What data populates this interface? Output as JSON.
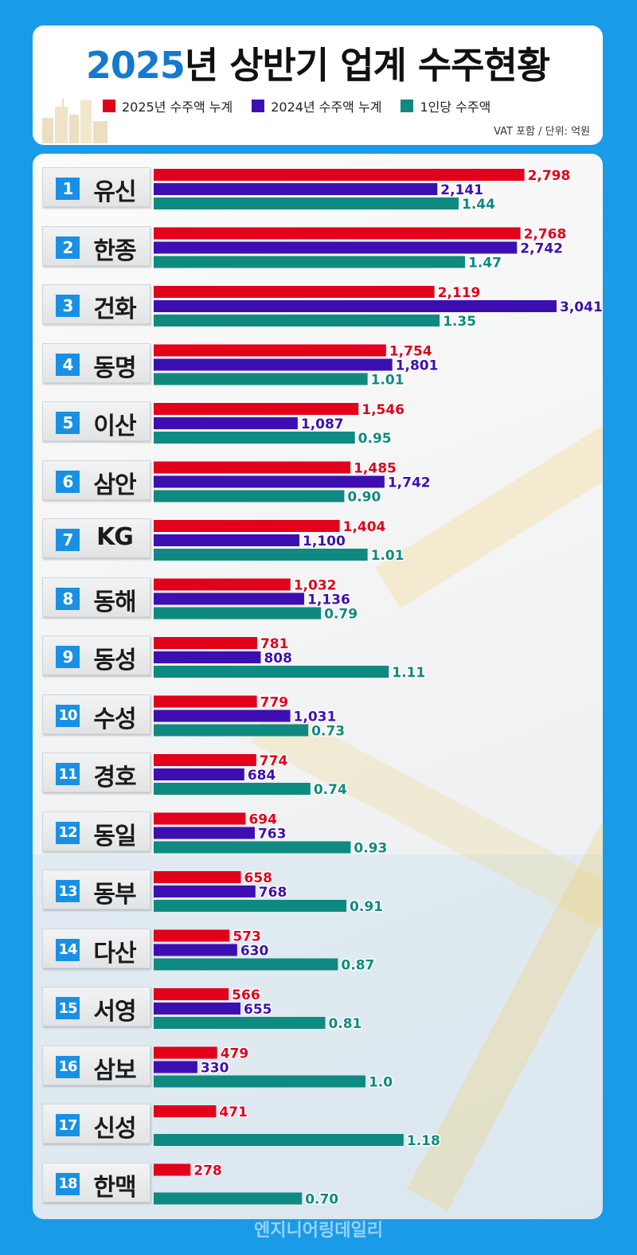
{
  "header": {
    "title_year": "2025",
    "title_rest": "년 상반기 업계 수주현황",
    "unit_note": "VAT 포함 / 단위: 억원"
  },
  "colors": {
    "series_2025": "#e2001a",
    "series_2024": "#3d0fb2",
    "per_person": "#0e8a80",
    "rank_badge": "#1890e4",
    "background": "#1a9be8"
  },
  "footer": {
    "watermark": "엔지니어링데일리"
  },
  "chart_data": {
    "type": "bar",
    "orientation": "horizontal",
    "title": "2025년 상반기 업계 수주현황",
    "unit": "VAT 포함 / 단위: 억원",
    "legend_position": "top",
    "categories": [
      "유신",
      "한종",
      "건화",
      "동명",
      "이산",
      "삼안",
      "KG",
      "동해",
      "동성",
      "수성",
      "경호",
      "동일",
      "동부",
      "다산",
      "서영",
      "삼보",
      "신성",
      "한맥"
    ],
    "ranks": [
      "1",
      "2",
      "3",
      "4",
      "5",
      "6",
      "7",
      "8",
      "9",
      "10",
      "11",
      "12",
      "13",
      "14",
      "15",
      "16",
      "17",
      "18"
    ],
    "series": [
      {
        "name": "2025년 수주액 누계",
        "color": "#e2001a",
        "values": [
          2798,
          2768,
          2119,
          1754,
          1546,
          1485,
          1404,
          1032,
          781,
          779,
          774,
          694,
          658,
          573,
          566,
          479,
          471,
          278
        ],
        "labels": [
          "2,798",
          "2,768",
          "2,119",
          "1,754",
          "1,546",
          "1,485",
          "1,404",
          "1,032",
          "781",
          "779",
          "774",
          "694",
          "658",
          "573",
          "566",
          "479",
          "471",
          "278"
        ]
      },
      {
        "name": "2024년 수주액 누계",
        "color": "#3d0fb2",
        "values": [
          2141,
          2742,
          3041,
          1801,
          1087,
          1742,
          1100,
          1136,
          808,
          1031,
          684,
          763,
          768,
          630,
          655,
          330,
          null,
          null
        ],
        "labels": [
          "2,141",
          "2,742",
          "3,041",
          "1,801",
          "1,087",
          "1,742",
          "1,100",
          "1,136",
          "808",
          "1,031",
          "684",
          "763",
          "768",
          "630",
          "655",
          "330",
          "",
          ""
        ]
      },
      {
        "name": "1인당 수주액",
        "color": "#0e8a80",
        "values": [
          1.44,
          1.47,
          1.35,
          1.01,
          0.95,
          0.9,
          1.01,
          0.79,
          1.11,
          0.73,
          0.74,
          0.93,
          0.91,
          0.87,
          0.81,
          1.0,
          1.18,
          0.7
        ],
        "labels": [
          "1.44",
          "1.47",
          "1.35",
          "1.01",
          "0.95",
          "0.90",
          "1.01",
          "0.79",
          "1.11",
          "0.73",
          "0.74",
          "0.93",
          "0.91",
          "0.87",
          "0.81",
          "1.0",
          "1.18",
          "0.70"
        ]
      }
    ],
    "amount_axis_max": 3041,
    "per_person_axis_max": 1.47
  }
}
